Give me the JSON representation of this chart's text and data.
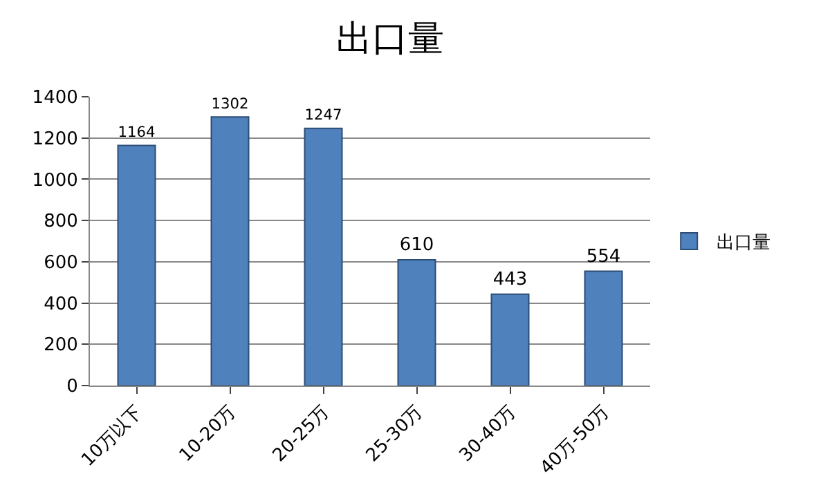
{
  "chart_data": {
    "type": "bar",
    "title": "出口量",
    "categories": [
      "10万以下",
      "10-20万",
      "20-25万",
      "25-30万",
      "30-40万",
      "40万-50万"
    ],
    "series": [
      {
        "name": "出口量",
        "color": "#4f81bd",
        "values": [
          1164,
          1302,
          1247,
          610,
          443,
          554
        ]
      }
    ],
    "ylim": [
      0,
      1400
    ],
    "yticks": [
      0,
      200,
      400,
      600,
      800,
      1000,
      1200,
      1400
    ],
    "grid": "y",
    "legend": "right",
    "data_labels": true
  }
}
